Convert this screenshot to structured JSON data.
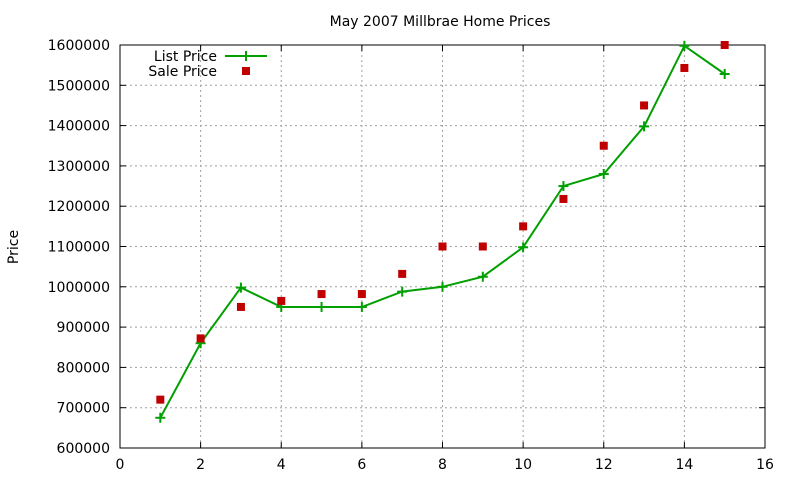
{
  "chart_data": {
    "type": "line",
    "title": "May 2007 Millbrae Home Prices",
    "xlabel": "",
    "ylabel": "Price",
    "xlim": [
      0,
      16
    ],
    "ylim": [
      600000,
      1600000
    ],
    "xticks": [
      0,
      2,
      4,
      6,
      8,
      10,
      12,
      14,
      16
    ],
    "yticks": [
      600000,
      700000,
      800000,
      900000,
      1000000,
      1100000,
      1200000,
      1300000,
      1400000,
      1500000,
      1600000
    ],
    "grid": true,
    "legend_position": "top-left",
    "x": [
      1,
      2,
      3,
      4,
      5,
      6,
      7,
      8,
      9,
      10,
      11,
      12,
      13,
      14,
      15
    ],
    "series": [
      {
        "name": "List Price",
        "style": "lines+points",
        "marker": "plus",
        "color": "#00a000",
        "values": [
          675000,
          860000,
          998000,
          950000,
          950000,
          950000,
          988000,
          1000000,
          1025000,
          1098000,
          1250000,
          1280000,
          1398000,
          1598000,
          1528000
        ]
      },
      {
        "name": "Sale Price",
        "style": "points",
        "marker": "square",
        "color": "#c00000",
        "values": [
          720000,
          872000,
          950000,
          965000,
          982000,
          982000,
          1032000,
          1100000,
          1100000,
          1150000,
          1218000,
          1350000,
          1450000,
          1543000,
          1600000
        ]
      }
    ]
  }
}
